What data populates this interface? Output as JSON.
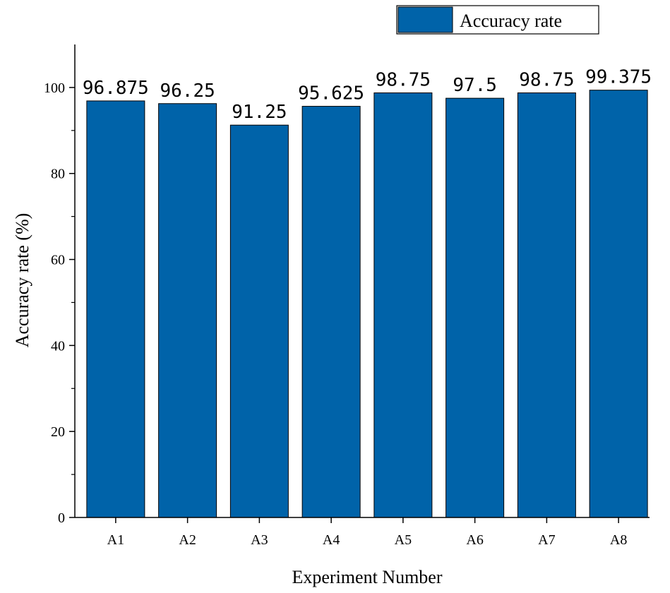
{
  "chart_data": {
    "type": "bar",
    "categories": [
      "A1",
      "A2",
      "A3",
      "A4",
      "A5",
      "A6",
      "A7",
      "A8"
    ],
    "series": [
      {
        "name": "Accuracy rate",
        "values": [
          96.875,
          96.25,
          91.25,
          95.625,
          98.75,
          97.5,
          98.75,
          99.375
        ],
        "labels": [
          "96.875",
          "96.25",
          "91.25",
          "95.625",
          "98.75",
          "97.5",
          "98.75",
          "99.375"
        ],
        "color": "#0063a9"
      }
    ],
    "xlabel": "Experiment Number",
    "ylabel": "Accuracy rate (%)",
    "ylim": [
      0,
      110
    ],
    "yticks": [
      0,
      20,
      40,
      60,
      80,
      100
    ],
    "grid": false,
    "legend_position": "top-right"
  }
}
